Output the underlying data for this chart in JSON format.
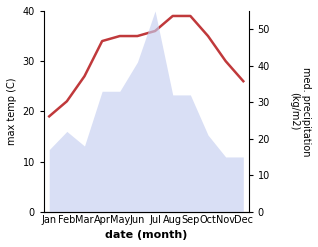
{
  "months": [
    "Jan",
    "Feb",
    "Mar",
    "Apr",
    "May",
    "Jun",
    "Jul",
    "Aug",
    "Sep",
    "Oct",
    "Nov",
    "Dec"
  ],
  "temperature": [
    19,
    22,
    27,
    34,
    35,
    35,
    36,
    39,
    39,
    35,
    30,
    26
  ],
  "precipitation_raw": [
    17,
    22,
    18,
    33,
    33,
    41,
    55,
    32,
    32,
    21,
    15,
    15
  ],
  "temp_color": "#c0393b",
  "precip_fill_color": "#c5cef0",
  "temp_ylim": [
    0,
    40
  ],
  "precip_ylim": [
    0,
    55
  ],
  "temp_yticks": [
    0,
    10,
    20,
    30,
    40
  ],
  "precip_yticks": [
    0,
    10,
    20,
    30,
    40,
    50
  ],
  "xlabel": "date (month)",
  "ylabel_left": "max temp (C)",
  "ylabel_right": "med. precipitation\n(kg/m2)",
  "figsize": [
    3.18,
    2.47
  ],
  "dpi": 100
}
